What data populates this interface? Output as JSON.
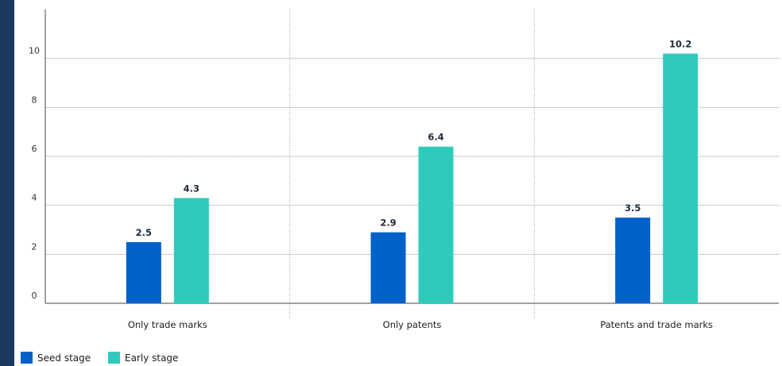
{
  "chart_data": {
    "type": "bar",
    "title": "",
    "xlabel": "",
    "ylabel": "",
    "categories": [
      "Only trade marks",
      "Only patents",
      "Patents and trade marks"
    ],
    "series": [
      {
        "name": "Seed stage",
        "values": [
          2.5,
          2.9,
          3.5
        ],
        "color": "#0061c9"
      },
      {
        "name": "Early stage",
        "values": [
          4.3,
          6.4,
          10.2
        ],
        "color": "#2ecbbd"
      }
    ],
    "ylim": [
      0,
      12
    ],
    "yticks": [
      "0",
      "2",
      "4",
      "6",
      "8",
      "10"
    ],
    "data_labels": [
      [
        "2.5",
        "2.9",
        "3.5"
      ],
      [
        "4.3",
        "6.4",
        "10.2"
      ]
    ],
    "grid": true,
    "legend": "bottom-left"
  }
}
